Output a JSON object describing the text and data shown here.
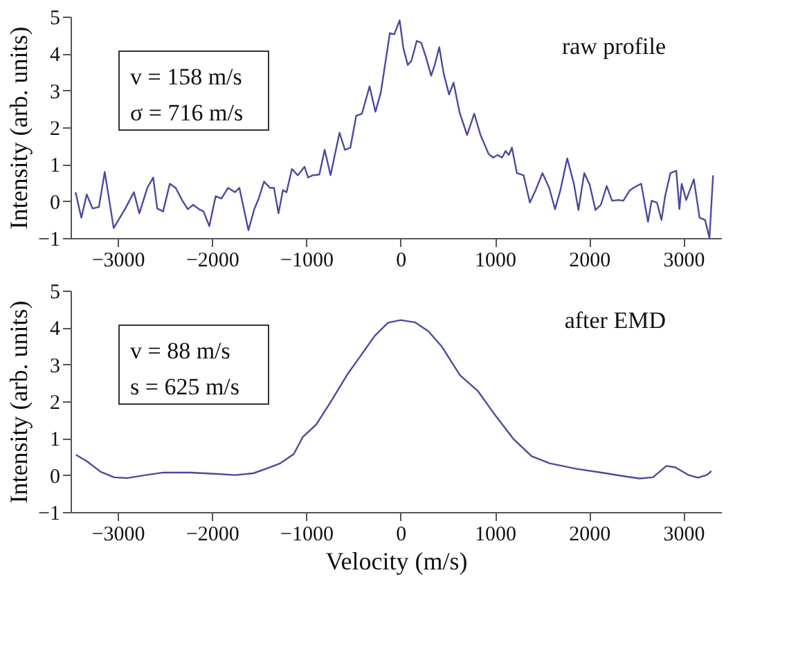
{
  "chart_data": [
    {
      "type": "line",
      "ylabel": "Intensity (arb. units)",
      "xlim": [
        -3500,
        3400
      ],
      "xticks": [
        -3000,
        -2000,
        -1000,
        0,
        1000,
        2000,
        3000
      ],
      "ylim": [
        -1,
        5
      ],
      "yticks": [
        -1,
        0,
        1,
        2,
        3,
        4,
        5
      ],
      "annotations": [
        "v = 158 m/s",
        "σ = 716 m/s",
        "raw profile"
      ],
      "series": [
        {
          "color": "#4a4aa0",
          "x": [
            -3447,
            -3386,
            -3329,
            -3267,
            -3200,
            -3138,
            -3043,
            -2924,
            -2829,
            -2771,
            -2686,
            -2624,
            -2581,
            -2519,
            -2448,
            -2386,
            -2314,
            -2257,
            -2200,
            -2138,
            -2090,
            -2029,
            -1962,
            -1900,
            -1829,
            -1757,
            -1710,
            -1614,
            -1552,
            -1505,
            -1448,
            -1386,
            -1343,
            -1295,
            -1248,
            -1210,
            -1152,
            -1090,
            -1019,
            -981,
            -933,
            -862,
            -805,
            -743,
            -648,
            -590,
            -533,
            -471,
            -410,
            -329,
            -267,
            -210,
            -114,
            -67,
            -10,
            29,
            76,
            114,
            171,
            219,
            267,
            324,
            362,
            410,
            457,
            514,
            562,
            624,
            705,
            781,
            848,
            933,
            981,
            1029,
            1076,
            1114,
            1148,
            1181,
            1233,
            1305,
            1371,
            1433,
            1505,
            1576,
            1638,
            1695,
            1767,
            1838,
            1886,
            1948,
            2005,
            2067,
            2124,
            2186,
            2243,
            2314,
            2362,
            2433,
            2505,
            2552,
            2624,
            2662,
            2719,
            2767,
            2805,
            2862,
            2924,
            2957,
            2981,
            3029,
            3110,
            3171,
            3229,
            3276,
            3314
          ],
          "values": [
            0.24,
            -0.45,
            0.18,
            -0.2,
            -0.16,
            0.79,
            -0.73,
            -0.22,
            0.24,
            -0.33,
            0.36,
            0.64,
            -0.2,
            -0.28,
            0.47,
            0.36,
            0.01,
            -0.22,
            -0.1,
            -0.22,
            -0.28,
            -0.68,
            0.13,
            0.07,
            0.36,
            0.24,
            0.36,
            -0.79,
            -0.22,
            0.07,
            0.53,
            0.36,
            0.36,
            -0.33,
            0.3,
            0.24,
            0.87,
            0.7,
            0.93,
            0.64,
            0.7,
            0.72,
            1.39,
            0.7,
            1.85,
            1.39,
            1.45,
            2.31,
            2.37,
            3.11,
            2.42,
            2.94,
            4.55,
            4.52,
            4.9,
            4.15,
            3.69,
            3.8,
            4.34,
            4.29,
            3.92,
            3.4,
            3.69,
            4.17,
            3.46,
            2.89,
            3.21,
            2.42,
            1.79,
            2.37,
            1.79,
            1.28,
            1.18,
            1.25,
            1.18,
            1.36,
            1.25,
            1.45,
            0.76,
            0.7,
            -0.04,
            0.3,
            0.76,
            0.36,
            -0.22,
            0.3,
            1.16,
            0.47,
            -0.24,
            0.76,
            0.45,
            -0.24,
            -0.1,
            0.41,
            0.01,
            0.03,
            0.01,
            0.3,
            0.41,
            0.47,
            -0.56,
            0.01,
            -0.04,
            -0.51,
            0.13,
            0.76,
            0.82,
            -0.22,
            0.47,
            0.03,
            0.59,
            -0.45,
            -0.51,
            -1.0,
            0.7
          ]
        }
      ]
    },
    {
      "type": "line",
      "ylabel": "Intensity (arb. units)",
      "xlabel": "Velocity (m/s)",
      "xlim": [
        -3500,
        3400
      ],
      "xticks": [
        -3000,
        -2000,
        -1000,
        0,
        1000,
        2000,
        3000
      ],
      "ylim": [
        -1,
        5
      ],
      "yticks": [
        -1,
        0,
        1,
        2,
        3,
        4,
        5
      ],
      "annotations": [
        "v = 88 m/s",
        "s = 625 m/s",
        "after EMD"
      ],
      "series": [
        {
          "color": "#4a4aa0",
          "x": [
            -3443,
            -3324,
            -3181,
            -3038,
            -2895,
            -2705,
            -2514,
            -2229,
            -1943,
            -1752,
            -1562,
            -1419,
            -1276,
            -1133,
            -1038,
            -895,
            -752,
            -562,
            -419,
            -276,
            -133,
            0,
            152,
            295,
            438,
            629,
            819,
            1010,
            1200,
            1390,
            1581,
            1867,
            2152,
            2343,
            2533,
            2676,
            2819,
            2914,
            3057,
            3152,
            3248,
            3295
          ],
          "values": [
            0.55,
            0.37,
            0.09,
            -0.06,
            -0.08,
            0,
            0.07,
            0.07,
            0.03,
            0,
            0.05,
            0.18,
            0.32,
            0.57,
            1.03,
            1.37,
            1.94,
            2.74,
            3.25,
            3.77,
            4.13,
            4.2,
            4.14,
            3.9,
            3.48,
            2.71,
            2.28,
            1.6,
            0.97,
            0.51,
            0.32,
            0.17,
            0.06,
            -0.02,
            -0.09,
            -0.06,
            0.25,
            0.21,
            0,
            -0.07,
            0,
            0.11
          ]
        }
      ]
    }
  ]
}
